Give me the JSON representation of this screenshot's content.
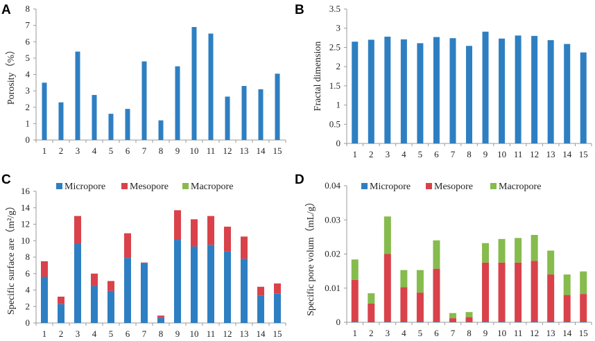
{
  "colors": {
    "micropore": "#2e7fc2",
    "mesopore": "#d9424a",
    "macropore": "#86bb4d",
    "single": "#2e7fc2"
  },
  "chart_data": [
    {
      "panel": "A",
      "type": "bar",
      "title": "",
      "xlabel": "",
      "ylabel": "Porosity（%）",
      "categories": [
        "1",
        "2",
        "3",
        "4",
        "5",
        "6",
        "7",
        "8",
        "9",
        "10",
        "11",
        "12",
        "13",
        "14",
        "15"
      ],
      "values": [
        3.5,
        2.3,
        5.4,
        2.75,
        1.6,
        1.9,
        4.8,
        1.2,
        4.5,
        6.9,
        6.5,
        2.65,
        3.3,
        3.1,
        4.05
      ],
      "ylim": [
        0,
        8
      ],
      "yticks": [
        "0",
        "1",
        "2",
        "3",
        "4",
        "5",
        "6",
        "7",
        "8"
      ]
    },
    {
      "panel": "B",
      "type": "bar",
      "title": "",
      "xlabel": "",
      "ylabel": "Fractal dimension",
      "categories": [
        "1",
        "2",
        "3",
        "4",
        "5",
        "6",
        "7",
        "8",
        "9",
        "10",
        "11",
        "12",
        "13",
        "14",
        "15"
      ],
      "values": [
        2.65,
        2.7,
        2.78,
        2.71,
        2.61,
        2.77,
        2.74,
        2.54,
        2.91,
        2.73,
        2.81,
        2.8,
        2.69,
        2.59,
        2.37
      ],
      "ylim": [
        0,
        3.5
      ],
      "yticks": [
        "0",
        "0.5",
        "1",
        "1.5",
        "2",
        "2.5",
        "3",
        "3.5"
      ]
    },
    {
      "panel": "C",
      "type": "bar",
      "stacked": true,
      "title": "",
      "xlabel": "",
      "ylabel": "Specific surface are（m²/g）",
      "categories": [
        "1",
        "2",
        "3",
        "4",
        "5",
        "6",
        "7",
        "8",
        "9",
        "10",
        "11",
        "12",
        "13",
        "14",
        "15"
      ],
      "series": [
        {
          "name": "Micropore",
          "values": [
            5.6,
            2.3,
            9.6,
            4.5,
            3.9,
            7.9,
            7.3,
            0.6,
            10.1,
            9.3,
            9.5,
            8.7,
            7.8,
            3.3,
            3.6
          ]
        },
        {
          "name": "Mesopore",
          "values": [
            1.9,
            0.9,
            3.4,
            1.5,
            1.2,
            3.0,
            0.05,
            0.3,
            3.6,
            3.3,
            3.5,
            3.0,
            2.7,
            1.1,
            1.2
          ]
        },
        {
          "name": "Macropore",
          "values": [
            0,
            0,
            0,
            0,
            0,
            0,
            0,
            0,
            0,
            0,
            0,
            0,
            0,
            0,
            0
          ]
        }
      ],
      "ylim": [
        0,
        16
      ],
      "yticks": [
        "0",
        "2",
        "4",
        "6",
        "8",
        "10",
        "12",
        "14",
        "16"
      ],
      "legend": "top"
    },
    {
      "panel": "D",
      "type": "bar",
      "stacked": true,
      "title": "",
      "xlabel": "",
      "ylabel": "Specific pore volum（mL/g）",
      "categories": [
        "1",
        "2",
        "3",
        "4",
        "5",
        "6",
        "7",
        "8",
        "9",
        "10",
        "11",
        "12",
        "13",
        "14",
        "15"
      ],
      "series": [
        {
          "name": "Micropore",
          "values": [
            0.0003,
            0.0001,
            0.0003,
            0.0002,
            0.0002,
            0.0002,
            0.0001,
            0.0001,
            0.0003,
            0.0003,
            0.0003,
            0.0003,
            0.0003,
            0.0002,
            0.0002
          ]
        },
        {
          "name": "Mesopore",
          "values": [
            0.0121,
            0.0054,
            0.0197,
            0.0101,
            0.0085,
            0.0155,
            0.0011,
            0.0014,
            0.0172,
            0.0172,
            0.0172,
            0.0177,
            0.0137,
            0.0078,
            0.0081
          ]
        },
        {
          "name": "Macropore",
          "values": [
            0.006,
            0.003,
            0.011,
            0.005,
            0.0066,
            0.0083,
            0.0015,
            0.0015,
            0.0057,
            0.0069,
            0.0072,
            0.0076,
            0.007,
            0.006,
            0.0066
          ]
        }
      ],
      "ylim": [
        0,
        0.04
      ],
      "yticks": [
        "0",
        "0.01",
        "0.02",
        "0.03",
        "0.04"
      ],
      "legend": "top"
    }
  ]
}
